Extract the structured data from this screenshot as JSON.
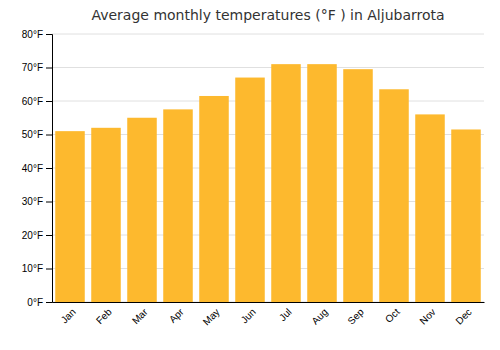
{
  "chart_data": {
    "type": "bar",
    "title": "Average monthly temperatures (°F ) in Aljubarrota",
    "categories": [
      "Jan",
      "Feb",
      "Mar",
      "Apr",
      "May",
      "Jun",
      "Jul",
      "Aug",
      "Sep",
      "Oct",
      "Nov",
      "Dec"
    ],
    "values": [
      51,
      52,
      55,
      57.5,
      61.5,
      67,
      71,
      71,
      69.5,
      63.5,
      56,
      51.5
    ],
    "color": "#FDB92E",
    "ylim": [
      0,
      80
    ],
    "yticks": [
      {
        "value": 0,
        "label": "0°F"
      },
      {
        "value": 10,
        "label": "10°F"
      },
      {
        "value": 20,
        "label": "20°F"
      },
      {
        "value": 30,
        "label": "30°F"
      },
      {
        "value": 40,
        "label": "40°F"
      },
      {
        "value": 50,
        "label": "50°F"
      },
      {
        "value": 60,
        "label": "60°F"
      },
      {
        "value": 70,
        "label": "70°F"
      },
      {
        "value": 80,
        "label": "80°F"
      }
    ],
    "grid": true
  }
}
